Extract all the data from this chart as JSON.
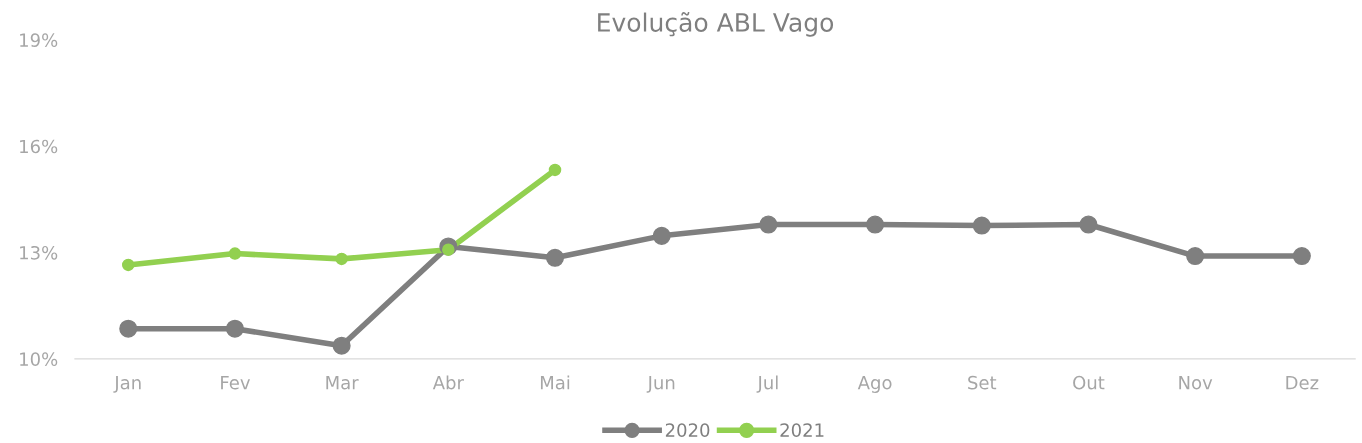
{
  "chart_data": {
    "type": "line",
    "title": "Evolução ABL Vago",
    "categories": [
      "Jan",
      "Fev",
      "Mar",
      "Abr",
      "Mai",
      "Jun",
      "Jul",
      "Ago",
      "Set",
      "Out",
      "Nov",
      "Dez"
    ],
    "series": [
      {
        "name": "2020",
        "color": "#7f7f7f",
        "values": [
          10.85,
          10.85,
          10.37,
          13.17,
          12.85,
          13.47,
          13.79,
          13.79,
          13.76,
          13.79,
          12.9,
          12.9
        ]
      },
      {
        "name": "2021",
        "color": "#92d050",
        "values": [
          12.65,
          12.97,
          12.82,
          13.08,
          15.33,
          null,
          null,
          null,
          null,
          null,
          null,
          null
        ]
      }
    ],
    "ylim": [
      10,
      19
    ],
    "yticks": [
      {
        "value": 10,
        "label": "10%"
      },
      {
        "value": 13,
        "label": "13%"
      },
      {
        "value": 16,
        "label": "16%"
      },
      {
        "value": 19,
        "label": "19%"
      }
    ],
    "grid": false,
    "legend": "bottom",
    "marker": "circle",
    "line_style": "solid"
  }
}
